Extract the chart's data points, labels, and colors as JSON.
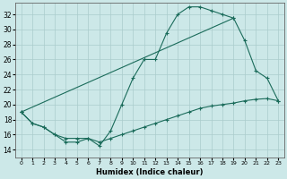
{
  "xlabel": "Humidex (Indice chaleur)",
  "xlim": [
    -0.5,
    23.5
  ],
  "ylim": [
    13.0,
    33.5
  ],
  "yticks": [
    14,
    16,
    18,
    20,
    22,
    24,
    26,
    28,
    30,
    32
  ],
  "xticks": [
    0,
    1,
    2,
    3,
    4,
    5,
    6,
    7,
    8,
    9,
    10,
    11,
    12,
    13,
    14,
    15,
    16,
    17,
    18,
    19,
    20,
    21,
    22,
    23
  ],
  "bg_color": "#cce8e8",
  "grid_color": "#aacccc",
  "line_color": "#1a6b5a",
  "line1_x": [
    0,
    1,
    2,
    3,
    4,
    5,
    6,
    7,
    8,
    9,
    10,
    11,
    12,
    13,
    14,
    15,
    16,
    17,
    18,
    19
  ],
  "line1_y": [
    19.0,
    17.5,
    17.0,
    16.0,
    15.0,
    15.0,
    15.5,
    14.5,
    16.5,
    20.0,
    23.5,
    26.0,
    26.0,
    29.5,
    32.0,
    33.0,
    33.0,
    32.5,
    32.0,
    31.5
  ],
  "line2_x": [
    0,
    1,
    2,
    3,
    4,
    5,
    6,
    7,
    8,
    9,
    10,
    11,
    12,
    13,
    14,
    15,
    16,
    17,
    18,
    19,
    20,
    21,
    22,
    23
  ],
  "line2_y": [
    19.0,
    17.5,
    17.0,
    16.0,
    15.5,
    15.5,
    15.5,
    15.0,
    15.5,
    16.0,
    16.5,
    17.0,
    17.5,
    18.0,
    18.5,
    19.0,
    19.5,
    19.8,
    20.0,
    20.2,
    20.5,
    20.7,
    20.8,
    20.5
  ],
  "line3_x": [
    0,
    19,
    20,
    21,
    22,
    23
  ],
  "line3_y": [
    19.0,
    31.5,
    28.5,
    24.5,
    23.5,
    20.5
  ]
}
